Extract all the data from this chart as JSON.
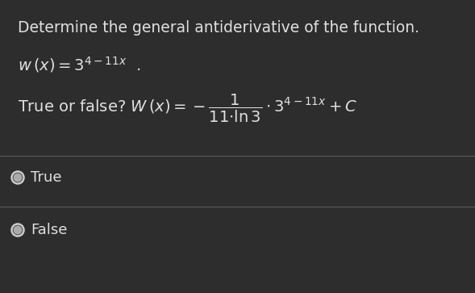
{
  "bg_color": "#2d2d2d",
  "text_color": "#e0e0e0",
  "divider_color": "#555555",
  "title": "Determine the general antiderivative of the function.",
  "title_fontsize": 13.5,
  "function_fontsize": 14,
  "question_fontsize": 14,
  "radio_true": "True",
  "radio_false": "False",
  "option_fontsize": 13,
  "radio_circle_color": "#cccccc"
}
